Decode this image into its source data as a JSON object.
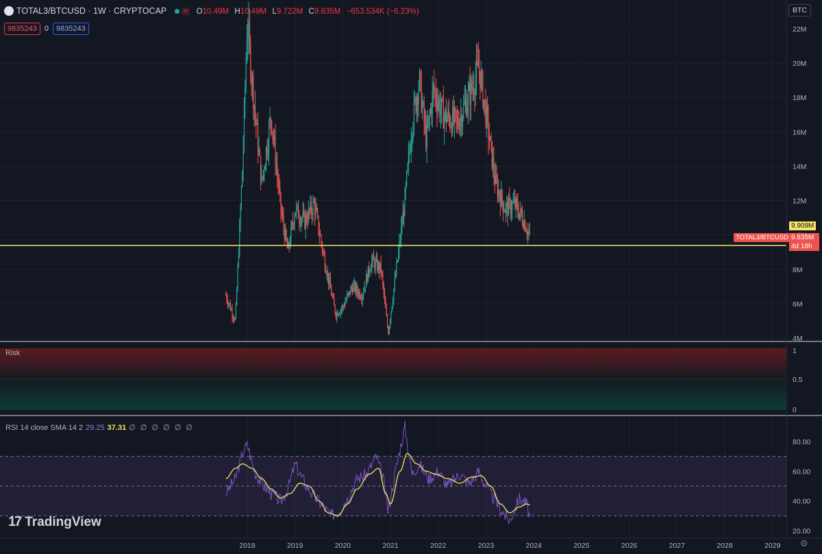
{
  "header": {
    "symbol": "TOTAL3/BTCUSD · 1W · CRYPTOCAP",
    "o_label": "O",
    "o_value": "10.49M",
    "h_label": "H",
    "h_value": "10.49M",
    "l_label": "L",
    "l_value": "9.722M",
    "c_label": "C",
    "c_value": "9.835M",
    "change": "−653.534K (−6.23%)",
    "sell_value": "9835243",
    "spread": "0",
    "buy_value": "9835243",
    "currency": "BTC"
  },
  "price_labels": {
    "high_marker": "9.909M",
    "symbol_tag": "TOTAL3/BTCUSD",
    "last_price": "9.835M",
    "countdown": "4d 18h"
  },
  "panes": {
    "risk_title": "Risk",
    "rsi_title": "RSI 14 close SMA 14 2",
    "rsi_value": "29.25",
    "rsi_sma_value": "37.31",
    "rsi_empty": "∅ ∅ ∅ ∅ ∅ ∅"
  },
  "branding": {
    "logo": "TradingView"
  },
  "colors": {
    "background": "#131722",
    "up": "#26a69a",
    "down": "#ef5350",
    "level_line": "#f5e663",
    "rsi_line": "#7e57c2",
    "rsi_sma": "#f5e663",
    "risk_high": "#5c1a1f",
    "risk_low": "#0f3b37"
  },
  "chart_data": [
    {
      "type": "candlestick",
      "title": "TOTAL3/BTCUSD · 1W · CRYPTOCAP",
      "x_ticks": [
        "2018",
        "2019",
        "2020",
        "2021",
        "2022",
        "2023",
        "2024",
        "2025",
        "2026",
        "2027",
        "2028",
        "2029"
      ],
      "y_ticks": [
        "4M",
        "6M",
        "8M",
        "10M",
        "12M",
        "14M",
        "16M",
        "18M",
        "20M",
        "22M"
      ],
      "ylim": [
        4,
        22.8
      ],
      "y_unit": "M BTC",
      "horizontal_level": 9.909,
      "key_points": [
        {
          "x": 2017.55,
          "y": 6.5
        },
        {
          "x": 2017.75,
          "y": 5.0
        },
        {
          "x": 2017.9,
          "y": 14.0
        },
        {
          "x": 2018.0,
          "y": 22.5
        },
        {
          "x": 2018.1,
          "y": 19.0
        },
        {
          "x": 2018.3,
          "y": 13.0
        },
        {
          "x": 2018.5,
          "y": 17.0
        },
        {
          "x": 2018.7,
          "y": 11.5
        },
        {
          "x": 2018.85,
          "y": 9.0
        },
        {
          "x": 2019.0,
          "y": 11.5
        },
        {
          "x": 2019.2,
          "y": 10.8
        },
        {
          "x": 2019.4,
          "y": 11.8
        },
        {
          "x": 2019.6,
          "y": 8.8
        },
        {
          "x": 2019.85,
          "y": 5.4
        },
        {
          "x": 2020.0,
          "y": 5.8
        },
        {
          "x": 2020.2,
          "y": 7.0
        },
        {
          "x": 2020.4,
          "y": 6.5
        },
        {
          "x": 2020.6,
          "y": 8.5
        },
        {
          "x": 2020.8,
          "y": 8.0
        },
        {
          "x": 2020.95,
          "y": 4.3
        },
        {
          "x": 2021.1,
          "y": 7.5
        },
        {
          "x": 2021.3,
          "y": 12.0
        },
        {
          "x": 2021.45,
          "y": 16.5
        },
        {
          "x": 2021.6,
          "y": 19.0
        },
        {
          "x": 2021.75,
          "y": 15.5
        },
        {
          "x": 2021.9,
          "y": 18.5
        },
        {
          "x": 2022.1,
          "y": 17.0
        },
        {
          "x": 2022.4,
          "y": 16.5
        },
        {
          "x": 2022.7,
          "y": 18.5
        },
        {
          "x": 2022.85,
          "y": 19.8
        },
        {
          "x": 2023.0,
          "y": 17.0
        },
        {
          "x": 2023.2,
          "y": 13.0
        },
        {
          "x": 2023.4,
          "y": 11.5
        },
        {
          "x": 2023.6,
          "y": 11.8
        },
        {
          "x": 2023.8,
          "y": 10.8
        },
        {
          "x": 2023.92,
          "y": 9.835
        }
      ]
    },
    {
      "type": "area",
      "title": "Risk",
      "y_ticks": [
        "0",
        "0.5",
        "1"
      ],
      "ylim": [
        0,
        1
      ]
    },
    {
      "type": "line",
      "title": "RSI 14 close SMA 14 2",
      "y_ticks": [
        "20.00",
        "40.00",
        "60.00",
        "80.00"
      ],
      "ylim": [
        18,
        91
      ],
      "reference_levels": [
        30,
        50,
        70
      ],
      "series": [
        {
          "name": "RSI",
          "values": [
            [
              2017.55,
              45
            ],
            [
              2017.75,
              55
            ],
            [
              2017.9,
              72
            ],
            [
              2018.0,
              78
            ],
            [
              2018.15,
              60
            ],
            [
              2018.3,
              52
            ],
            [
              2018.5,
              45
            ],
            [
              2018.7,
              40
            ],
            [
              2018.85,
              48
            ],
            [
              2019.0,
              65
            ],
            [
              2019.15,
              55
            ],
            [
              2019.35,
              45
            ],
            [
              2019.55,
              38
            ],
            [
              2019.75,
              30
            ],
            [
              2019.9,
              33
            ],
            [
              2020.1,
              42
            ],
            [
              2020.3,
              55
            ],
            [
              2020.5,
              58
            ],
            [
              2020.7,
              70
            ],
            [
              2020.85,
              55
            ],
            [
              2020.95,
              33
            ],
            [
              2021.1,
              60
            ],
            [
              2021.3,
              90
            ],
            [
              2021.45,
              58
            ],
            [
              2021.6,
              65
            ],
            [
              2021.8,
              55
            ],
            [
              2022.0,
              60
            ],
            [
              2022.2,
              50
            ],
            [
              2022.45,
              58
            ],
            [
              2022.65,
              52
            ],
            [
              2022.85,
              60
            ],
            [
              2023.0,
              50
            ],
            [
              2023.2,
              40
            ],
            [
              2023.4,
              30
            ],
            [
              2023.5,
              27
            ],
            [
              2023.7,
              42
            ],
            [
              2023.85,
              38
            ],
            [
              2023.92,
              29.25
            ]
          ]
        },
        {
          "name": "SMA",
          "values": [
            [
              2017.55,
              55
            ],
            [
              2017.75,
              62
            ],
            [
              2017.9,
              65
            ],
            [
              2018.1,
              62
            ],
            [
              2018.3,
              55
            ],
            [
              2018.5,
              48
            ],
            [
              2018.7,
              42
            ],
            [
              2018.9,
              45
            ],
            [
              2019.1,
              52
            ],
            [
              2019.3,
              50
            ],
            [
              2019.5,
              40
            ],
            [
              2019.7,
              32
            ],
            [
              2019.9,
              30
            ],
            [
              2020.1,
              38
            ],
            [
              2020.3,
              48
            ],
            [
              2020.55,
              58
            ],
            [
              2020.75,
              62
            ],
            [
              2020.9,
              45
            ],
            [
              2021.0,
              38
            ],
            [
              2021.2,
              60
            ],
            [
              2021.35,
              72
            ],
            [
              2021.55,
              65
            ],
            [
              2021.75,
              60
            ],
            [
              2021.95,
              58
            ],
            [
              2022.2,
              55
            ],
            [
              2022.45,
              52
            ],
            [
              2022.7,
              56
            ],
            [
              2022.9,
              57
            ],
            [
              2023.1,
              50
            ],
            [
              2023.3,
              38
            ],
            [
              2023.5,
              32
            ],
            [
              2023.7,
              36
            ],
            [
              2023.85,
              38
            ],
            [
              2023.92,
              37.31
            ]
          ]
        }
      ]
    }
  ]
}
